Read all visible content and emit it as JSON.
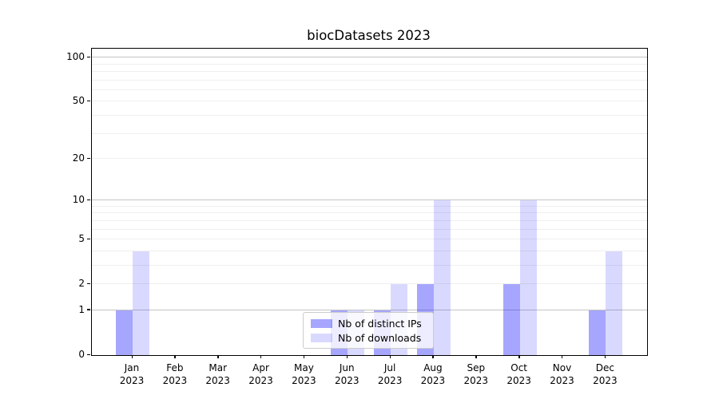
{
  "figure": {
    "background": "#ffffff"
  },
  "chart_data": {
    "type": "bar",
    "title": "biocDatasets 2023",
    "x_months": [
      "Jan",
      "Feb",
      "Mar",
      "Apr",
      "May",
      "Jun",
      "Jul",
      "Aug",
      "Sep",
      "Oct",
      "Nov",
      "Dec"
    ],
    "x_year": "2023",
    "series": [
      {
        "name": "Nb of distinct IPs",
        "color": "rgba(0,0,255,0.35)",
        "color_hex": "#a6a6ff",
        "values": [
          1,
          0,
          0,
          0,
          0,
          1,
          1,
          2,
          0,
          2,
          0,
          1
        ]
      },
      {
        "name": "Nb of downloads",
        "color": "rgba(0,0,255,0.15)",
        "color_hex": "#d9d9ff",
        "values": [
          4,
          0,
          0,
          0,
          0,
          1,
          2,
          10,
          0,
          10,
          0,
          4
        ]
      }
    ],
    "y_scale": "log1p",
    "ylim": [
      0,
      113
    ],
    "y_tick_labels": [
      0,
      1,
      2,
      5,
      10,
      20,
      50,
      100
    ],
    "y_gridlines_major": [
      1,
      10,
      100
    ],
    "y_gridlines_minor": [
      2,
      3,
      4,
      5,
      6,
      7,
      8,
      9,
      20,
      30,
      40,
      50,
      60,
      70,
      80,
      90
    ],
    "grid_on": true,
    "legend_position": "inside lower-center-left",
    "colors": {
      "grid_major": "#c4c4c4",
      "grid_minor": "#efefef",
      "axis": "#000000",
      "legend_border": "#cccccc",
      "legend_background": "rgba(255,255,255,0.8)"
    }
  }
}
